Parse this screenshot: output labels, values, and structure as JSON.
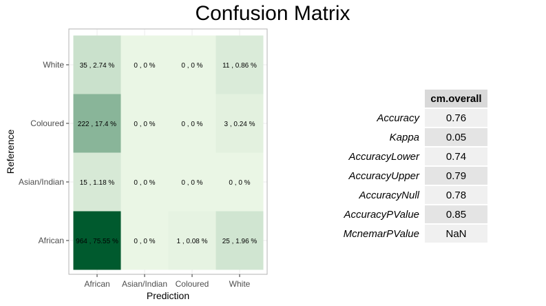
{
  "chart_data": {
    "type": "heatmap",
    "title": "Confusion Matrix",
    "xlabel": "Prediction",
    "ylabel": "Reference",
    "x_categories": [
      "African",
      "Asian/Indian",
      "Coloured",
      "White"
    ],
    "y_categories": [
      "African",
      "Asian/Indian",
      "Coloured",
      "White"
    ],
    "cells": [
      {
        "reference": "White",
        "prediction": "African",
        "count": 35,
        "percent": 2.74,
        "label": "35 , 2.74 %"
      },
      {
        "reference": "White",
        "prediction": "Asian/Indian",
        "count": 0,
        "percent": 0,
        "label": "0 , 0 %"
      },
      {
        "reference": "White",
        "prediction": "Coloured",
        "count": 0,
        "percent": 0,
        "label": "0 , 0 %"
      },
      {
        "reference": "White",
        "prediction": "White",
        "count": 11,
        "percent": 0.86,
        "label": "11 , 0.86 %"
      },
      {
        "reference": "Coloured",
        "prediction": "African",
        "count": 222,
        "percent": 17.4,
        "label": "222 , 17.4 %"
      },
      {
        "reference": "Coloured",
        "prediction": "Asian/Indian",
        "count": 0,
        "percent": 0,
        "label": "0 , 0 %"
      },
      {
        "reference": "Coloured",
        "prediction": "Coloured",
        "count": 0,
        "percent": 0,
        "label": "0 , 0 %"
      },
      {
        "reference": "Coloured",
        "prediction": "White",
        "count": 3,
        "percent": 0.24,
        "label": "3 , 0.24 %"
      },
      {
        "reference": "Asian/Indian",
        "prediction": "African",
        "count": 15,
        "percent": 1.18,
        "label": "15 , 1.18 %"
      },
      {
        "reference": "Asian/Indian",
        "prediction": "Asian/Indian",
        "count": 0,
        "percent": 0,
        "label": "0 , 0 %"
      },
      {
        "reference": "Asian/Indian",
        "prediction": "Coloured",
        "count": 0,
        "percent": 0,
        "label": "0 , 0 %"
      },
      {
        "reference": "Asian/Indian",
        "prediction": "White",
        "count": 0,
        "percent": 0,
        "label": "0 , 0 %"
      },
      {
        "reference": "African",
        "prediction": "African",
        "count": 964,
        "percent": 75.55,
        "label": "964 , 75.55 %"
      },
      {
        "reference": "African",
        "prediction": "Asian/Indian",
        "count": 0,
        "percent": 0,
        "label": "0 , 0 %"
      },
      {
        "reference": "African",
        "prediction": "Coloured",
        "count": 1,
        "percent": 0.08,
        "label": "1 , 0.08 %"
      },
      {
        "reference": "African",
        "prediction": "White",
        "count": 25,
        "percent": 1.96,
        "label": "25 , 1.96 %"
      }
    ],
    "color_low": "#eaf6e5",
    "color_high": "#005a2e",
    "grid": true
  },
  "stats_table": {
    "header": "cm.overall",
    "rows": [
      {
        "name": "Accuracy",
        "value": "0.76"
      },
      {
        "name": "Kappa",
        "value": "0.05"
      },
      {
        "name": "AccuracyLower",
        "value": "0.74"
      },
      {
        "name": "AccuracyUpper",
        "value": "0.79"
      },
      {
        "name": "AccuracyNull",
        "value": "0.78"
      },
      {
        "name": "AccuracyPValue",
        "value": "0.85"
      },
      {
        "name": "McnemarPValue",
        "value": "NaN"
      }
    ]
  }
}
